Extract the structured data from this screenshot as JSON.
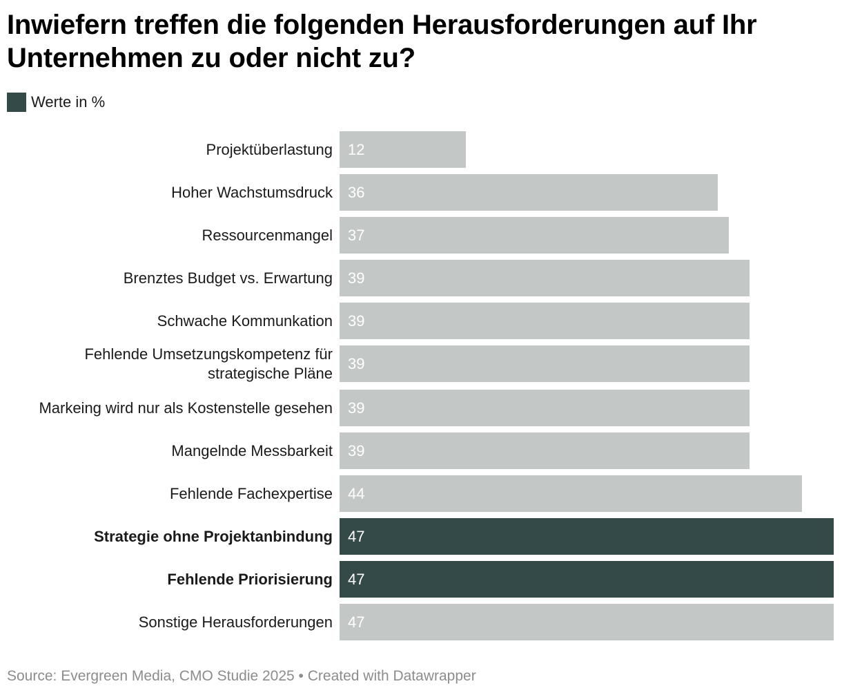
{
  "title": "Inwiefern treffen die folgenden Herausforderungen auf Ihr Unternehmen zu oder nicht zu?",
  "legend": {
    "label": "Werte in %",
    "color": "#334a48"
  },
  "colors": {
    "highlight": "#334a48",
    "default": "#c3c7c6"
  },
  "chart_data": {
    "type": "bar",
    "orientation": "horizontal",
    "title": "Inwiefern treffen die folgenden Herausforderungen auf Ihr Unternehmen zu oder nicht zu?",
    "xlabel": "",
    "ylabel": "",
    "xlim": [
      0,
      47
    ],
    "unit": "%",
    "categories": [
      "Projektüberlastung",
      "Hoher Wachstumsdruck",
      "Ressourcenmangel",
      "Brenztes Budget vs. Erwartung",
      "Schwache Kommunkation",
      "Fehlende Umsetzungskompetenz für strategische Pläne",
      "Markeing wird nur als Kostenstelle gesehen",
      "Mangelnde Messbarkeit",
      "Fehlende Fachexpertise",
      "Strategie ohne Projektanbindung",
      "Fehlende Priorisierung",
      "Sonstige Herausforderungen"
    ],
    "category_lines": [
      [
        "Projektüberlastung"
      ],
      [
        "Hoher Wachstumsdruck"
      ],
      [
        "Ressourcenmangel"
      ],
      [
        "Brenztes Budget vs. Erwartung"
      ],
      [
        "Schwache Kommunkation"
      ],
      [
        "Fehlende Umsetzungskompetenz für",
        "strategische Pläne"
      ],
      [
        "Markeing wird nur als Kostenstelle gesehen"
      ],
      [
        "Mangelnde Messbarkeit"
      ],
      [
        "Fehlende Fachexpertise"
      ],
      [
        "Strategie ohne Projektanbindung"
      ],
      [
        "Fehlende Priorisierung"
      ],
      [
        "Sonstige Herausforderungen"
      ]
    ],
    "values": [
      12,
      36,
      37,
      39,
      39,
      39,
      39,
      39,
      44,
      47,
      47,
      47
    ],
    "highlighted": [
      false,
      false,
      false,
      false,
      false,
      false,
      false,
      false,
      false,
      true,
      true,
      false
    ]
  },
  "footer": "Source: Evergreen Media, CMO Studie 2025 • Created with Datawrapper"
}
